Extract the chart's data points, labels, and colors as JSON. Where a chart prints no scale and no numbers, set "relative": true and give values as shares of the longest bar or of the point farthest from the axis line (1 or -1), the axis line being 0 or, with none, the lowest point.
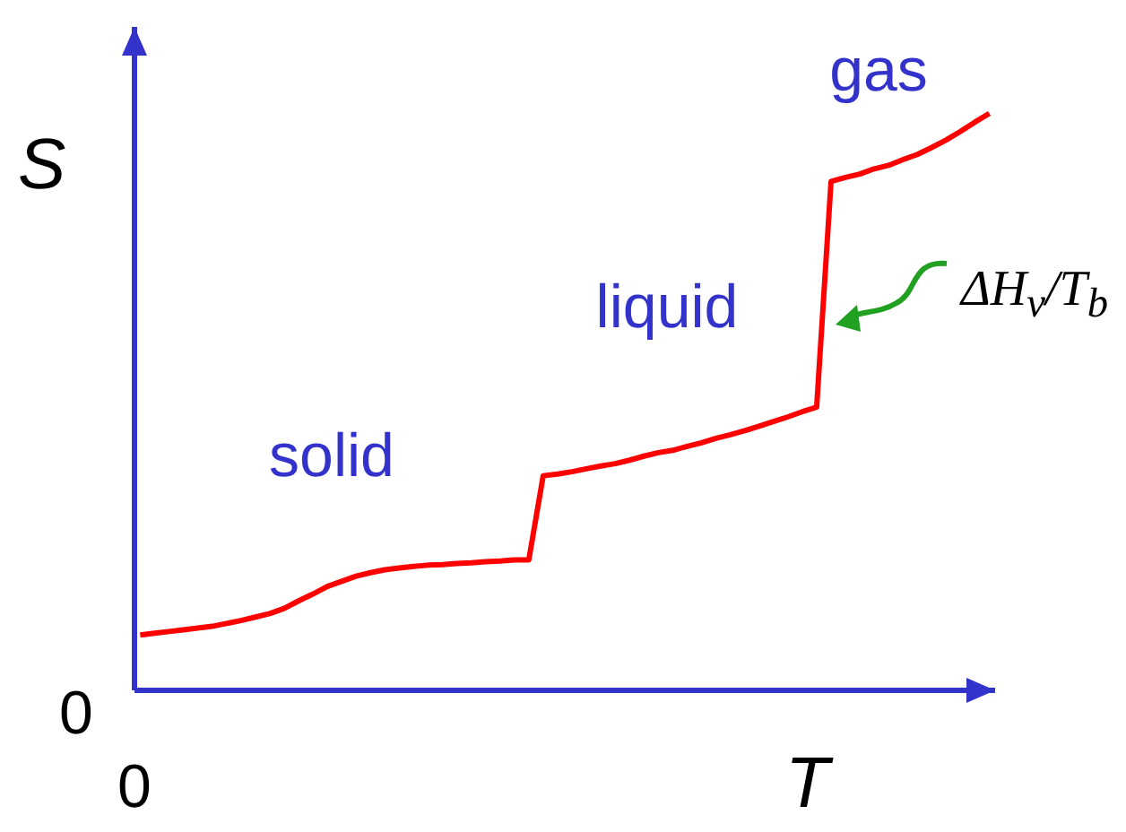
{
  "chart_data": {
    "type": "line",
    "relative": true,
    "xlabel": "T",
    "ylabel": "S",
    "marker": "none",
    "line_style": "solid",
    "categories": [
      null,
      null,
      null,
      null,
      null,
      null,
      null,
      null,
      null,
      null,
      null,
      null,
      null,
      null,
      null,
      null,
      null,
      null,
      null,
      null,
      null,
      null,
      null,
      null,
      null,
      null,
      null,
      null,
      null,
      null,
      null,
      null,
      null,
      null,
      null,
      null,
      null,
      null,
      null,
      null,
      null,
      null,
      null,
      null,
      null,
      null,
      null,
      null,
      null,
      null,
      null,
      null,
      null,
      null,
      null,
      null,
      null,
      null,
      null,
      null
    ],
    "series": [
      {
        "color": "#ff0000",
        "values": [
          0.096,
          0.099,
          0.102,
          0.105,
          0.108,
          0.111,
          0.116,
          0.121,
          0.127,
          0.133,
          0.142,
          0.155,
          0.167,
          0.18,
          0.189,
          0.198,
          0.204,
          0.209,
          0.212,
          0.215,
          0.217,
          0.218,
          0.22,
          0.221,
          0.223,
          0.224,
          0.226,
          0.226,
          0.372,
          0.375,
          0.379,
          0.384,
          0.389,
          0.393,
          0.399,
          0.406,
          0.412,
          0.416,
          0.423,
          0.429,
          0.437,
          0.443,
          0.45,
          0.458,
          0.466,
          0.474,
          0.483,
          0.491,
          0.882,
          0.889,
          0.895,
          0.904,
          0.91,
          0.92,
          0.929,
          0.941,
          0.954,
          0.969,
          0.985,
          1
        ]
      }
    ],
    "annotations": [
      "0",
      "0",
      "solid",
      "liquid",
      "gas",
      "ΔH$_{v}$/T$_{b}$"
    ]
  }
}
